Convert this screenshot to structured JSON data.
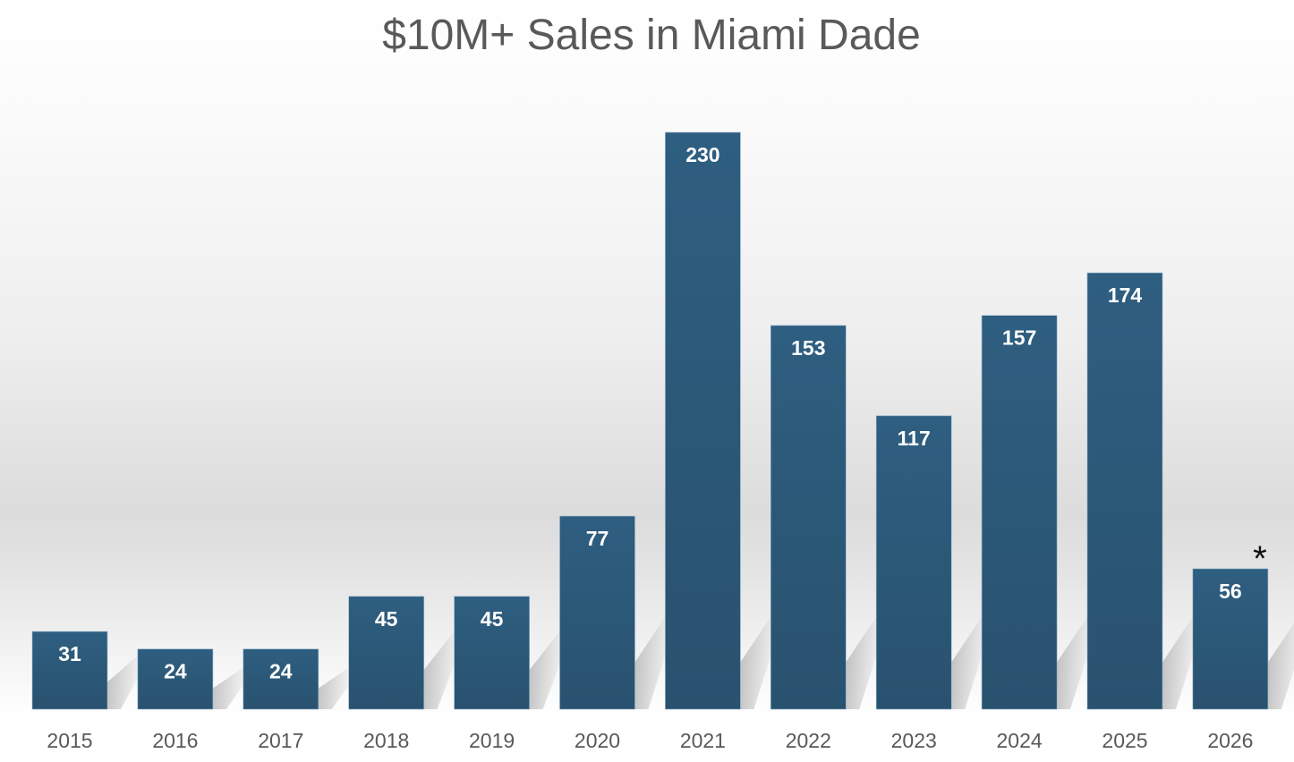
{
  "chart_data": {
    "type": "bar",
    "title": "$10M+ Sales in Miami Dade",
    "xlabel": "",
    "ylabel": "",
    "categories": [
      "2015",
      "2016",
      "2017",
      "2018",
      "2019",
      "2020",
      "2021",
      "2022",
      "2023",
      "2024",
      "2025",
      "2026"
    ],
    "values": [
      31,
      24,
      24,
      45,
      45,
      77,
      230,
      153,
      117,
      157,
      174,
      56
    ],
    "ylim": [
      0,
      230
    ],
    "grid": false,
    "data_labels": true,
    "annotations": [
      {
        "category": "2026",
        "text": "*"
      }
    ],
    "colors": {
      "bar": "#2d5b7c",
      "bar_bottom": "#2a5470",
      "label": "#ffffff",
      "tick": "#595959",
      "title": "#595959"
    }
  }
}
